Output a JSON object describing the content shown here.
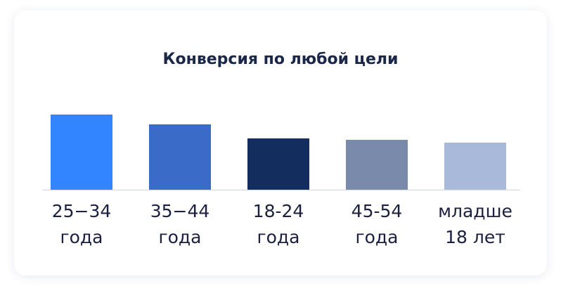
{
  "chart_data": {
    "type": "bar",
    "title": "Конверсия по любой цели",
    "categories": [
      "25−34\nгода",
      "35−44\nгода",
      "18-24\nгода",
      "45-54\nгода",
      "младше\n18 лет"
    ],
    "values": [
      107,
      93,
      73,
      71,
      67
    ],
    "colors": [
      "#3385ff",
      "#3a6bc8",
      "#132e5e",
      "#7a8aab",
      "#a9b9da"
    ]
  }
}
